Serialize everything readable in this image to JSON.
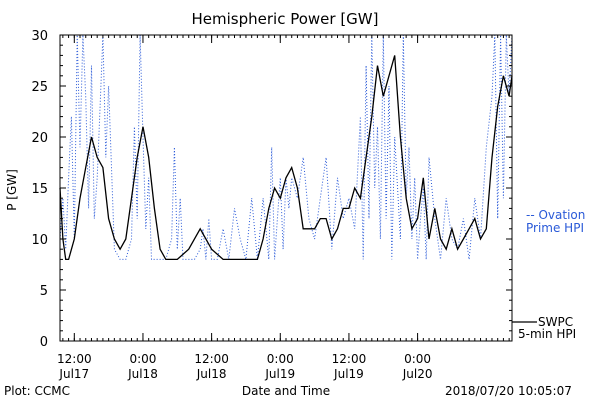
{
  "chart_data": {
    "type": "line",
    "title": "Hemispheric Power [GW]",
    "ylabel": "P [GW]",
    "xlabel": "Date and Time",
    "ylim": [
      0,
      30
    ],
    "xlim": [
      "2018-07-17T09:30",
      "2018-07-20T16:30"
    ],
    "y_ticks": [
      "0",
      "5",
      "10",
      "15",
      "20",
      "25",
      "30"
    ],
    "x_ticks": [
      {
        "time": "2018-07-17T12:00",
        "line1": "12:00",
        "line2": "Jul17"
      },
      {
        "time": "2018-07-18T00:00",
        "line1": "0:00",
        "line2": "Jul18"
      },
      {
        "time": "2018-07-18T12:00",
        "line1": "12:00",
        "line2": "Jul18"
      },
      {
        "time": "2018-07-19T00:00",
        "line1": "0:00",
        "line2": "Jul19"
      },
      {
        "time": "2018-07-19T12:00",
        "line1": "12:00",
        "line2": "Jul19"
      },
      {
        "time": "2018-07-20T00:00",
        "line1": "0:00",
        "line2": "Jul20"
      }
    ],
    "legend": {
      "ovation": {
        "line1": "-- Ovation",
        "line2": "Prime HPI",
        "color": "#2a5ad8"
      },
      "swpc": {
        "line1": "SWPC",
        "line2": "5-min HPI",
        "color": "#000000"
      }
    },
    "series": [
      {
        "name": "SWPC 5-min HPI",
        "style": "solid",
        "color": "#000000",
        "x": [
          "2018-07-17T09:30",
          "2018-07-17T10:00",
          "2018-07-17T10:30",
          "2018-07-17T11:00",
          "2018-07-17T12:00",
          "2018-07-17T13:00",
          "2018-07-17T14:00",
          "2018-07-17T15:00",
          "2018-07-17T16:00",
          "2018-07-17T17:00",
          "2018-07-17T18:00",
          "2018-07-17T19:00",
          "2018-07-17T20:00",
          "2018-07-17T21:00",
          "2018-07-17T22:00",
          "2018-07-17T23:00",
          "2018-07-18T00:00",
          "2018-07-18T01:00",
          "2018-07-18T02:00",
          "2018-07-18T03:00",
          "2018-07-18T04:00",
          "2018-07-18T05:00",
          "2018-07-18T06:00",
          "2018-07-18T08:00",
          "2018-07-18T10:00",
          "2018-07-18T12:00",
          "2018-07-18T14:00",
          "2018-07-18T18:00",
          "2018-07-18T20:00",
          "2018-07-18T21:00",
          "2018-07-18T22:00",
          "2018-07-18T23:00",
          "2018-07-19T00:00",
          "2018-07-19T01:00",
          "2018-07-19T02:00",
          "2018-07-19T03:00",
          "2018-07-19T04:00",
          "2018-07-19T05:00",
          "2018-07-19T06:00",
          "2018-07-19T07:00",
          "2018-07-19T08:00",
          "2018-07-19T09:00",
          "2018-07-19T10:00",
          "2018-07-19T11:00",
          "2018-07-19T12:00",
          "2018-07-19T13:00",
          "2018-07-19T14:00",
          "2018-07-19T15:00",
          "2018-07-19T16:00",
          "2018-07-19T17:00",
          "2018-07-19T18:00",
          "2018-07-19T19:00",
          "2018-07-19T20:00",
          "2018-07-19T21:00",
          "2018-07-19T22:00",
          "2018-07-19T23:00",
          "2018-07-20T00:00",
          "2018-07-20T01:00",
          "2018-07-20T02:00",
          "2018-07-20T03:00",
          "2018-07-20T04:00",
          "2018-07-20T05:00",
          "2018-07-20T06:00",
          "2018-07-20T07:00",
          "2018-07-20T08:00",
          "2018-07-20T09:00",
          "2018-07-20T10:00",
          "2018-07-20T11:00",
          "2018-07-20T12:00",
          "2018-07-20T13:00",
          "2018-07-20T14:00",
          "2018-07-20T15:00",
          "2018-07-20T16:00",
          "2018-07-20T16:30"
        ],
        "y": [
          15,
          10,
          8,
          8,
          10,
          14,
          17,
          20,
          18,
          17,
          12,
          10,
          9,
          10,
          14,
          18,
          21,
          18,
          13,
          9,
          8,
          8,
          8,
          9,
          11,
          9,
          8,
          8,
          8,
          10,
          13,
          15,
          14,
          16,
          17,
          15,
          11,
          11,
          11,
          12,
          12,
          10,
          11,
          13,
          13,
          15,
          14,
          18,
          22,
          27,
          24,
          26,
          28,
          20,
          14,
          11,
          12,
          16,
          10,
          13,
          10,
          9,
          11,
          9,
          10,
          11,
          12,
          10,
          11,
          18,
          23,
          26,
          24,
          26
        ],
        "note": "values estimated from gridlines"
      },
      {
        "name": "Ovation Prime HPI",
        "style": "dotted",
        "color": "#2a5ad8",
        "x": [
          "2018-07-17T09:30",
          "2018-07-17T10:00",
          "2018-07-17T10:30",
          "2018-07-17T11:00",
          "2018-07-17T11:30",
          "2018-07-17T12:00",
          "2018-07-17T12:30",
          "2018-07-17T13:00",
          "2018-07-17T13:30",
          "2018-07-17T14:00",
          "2018-07-17T14:30",
          "2018-07-17T15:00",
          "2018-07-17T15:30",
          "2018-07-17T16:00",
          "2018-07-17T16:30",
          "2018-07-17T17:00",
          "2018-07-17T17:30",
          "2018-07-17T18:00",
          "2018-07-17T19:00",
          "2018-07-17T20:00",
          "2018-07-17T21:00",
          "2018-07-17T22:00",
          "2018-07-17T22:30",
          "2018-07-17T23:00",
          "2018-07-17T23:30",
          "2018-07-18T00:00",
          "2018-07-18T00:30",
          "2018-07-18T01:00",
          "2018-07-18T01:30",
          "2018-07-18T02:00",
          "2018-07-18T03:00",
          "2018-07-18T04:00",
          "2018-07-18T05:00",
          "2018-07-18T05:30",
          "2018-07-18T06:00",
          "2018-07-18T06:30",
          "2018-07-18T07:00",
          "2018-07-18T08:00",
          "2018-07-18T09:00",
          "2018-07-18T10:00",
          "2018-07-18T10:30",
          "2018-07-18T11:00",
          "2018-07-18T11:30",
          "2018-07-18T12:00",
          "2018-07-18T13:00",
          "2018-07-18T14:00",
          "2018-07-18T15:00",
          "2018-07-18T16:00",
          "2018-07-18T17:00",
          "2018-07-18T18:00",
          "2018-07-18T19:00",
          "2018-07-18T20:00",
          "2018-07-18T21:00",
          "2018-07-18T22:00",
          "2018-07-18T22:30",
          "2018-07-18T23:00",
          "2018-07-18T23:30",
          "2018-07-19T00:00",
          "2018-07-19T00:30",
          "2018-07-19T01:00",
          "2018-07-19T01:30",
          "2018-07-19T02:00",
          "2018-07-19T03:00",
          "2018-07-19T04:00",
          "2018-07-19T05:00",
          "2018-07-19T06:00",
          "2018-07-19T07:00",
          "2018-07-19T08:00",
          "2018-07-19T09:00",
          "2018-07-19T10:00",
          "2018-07-19T11:00",
          "2018-07-19T12:00",
          "2018-07-19T13:00",
          "2018-07-19T14:00",
          "2018-07-19T14:30",
          "2018-07-19T15:00",
          "2018-07-19T15:30",
          "2018-07-19T16:00",
          "2018-07-19T16:30",
          "2018-07-19T17:00",
          "2018-07-19T17:30",
          "2018-07-19T18:00",
          "2018-07-19T18:30",
          "2018-07-19T19:00",
          "2018-07-19T19:30",
          "2018-07-19T20:00",
          "2018-07-19T21:00",
          "2018-07-19T21:30",
          "2018-07-19T22:00",
          "2018-07-19T22:30",
          "2018-07-19T23:00",
          "2018-07-19T23:30",
          "2018-07-20T00:00",
          "2018-07-20T00:30",
          "2018-07-20T01:00",
          "2018-07-20T01:30",
          "2018-07-20T02:00",
          "2018-07-20T03:00",
          "2018-07-20T04:00",
          "2018-07-20T05:00",
          "2018-07-20T06:00",
          "2018-07-20T07:00",
          "2018-07-20T08:00",
          "2018-07-20T09:00",
          "2018-07-20T10:00",
          "2018-07-20T11:00",
          "2018-07-20T12:00",
          "2018-07-20T13:00",
          "2018-07-20T13:30",
          "2018-07-20T14:00",
          "2018-07-20T14:30",
          "2018-07-20T15:00",
          "2018-07-20T15:30",
          "2018-07-20T16:00",
          "2018-07-20T16:30"
        ],
        "y": [
          10,
          14,
          9,
          16,
          22,
          10,
          30,
          19,
          30,
          24,
          13,
          27,
          12,
          16,
          23,
          30,
          18,
          25,
          9,
          8,
          8,
          10,
          21,
          12,
          30,
          20,
          11,
          16,
          8,
          8,
          8,
          8,
          10,
          19,
          9,
          14,
          8,
          8,
          8,
          9,
          11,
          8,
          12,
          8,
          8,
          11,
          8,
          13,
          10,
          8,
          14,
          8,
          14,
          8,
          19,
          8,
          12,
          16,
          9,
          16,
          13,
          16,
          14,
          18,
          12,
          10,
          14,
          18,
          9,
          16,
          12,
          14,
          11,
          22,
          8,
          27,
          12,
          30,
          15,
          21,
          10,
          30,
          12,
          25,
          8,
          20,
          10,
          30,
          14,
          19,
          10,
          16,
          8,
          12,
          15,
          8,
          18,
          12,
          8,
          14,
          10,
          9,
          12,
          8,
          14,
          10,
          19,
          24,
          30,
          12,
          30,
          14,
          30,
          24,
          30
        ]
      }
    ],
    "footer": {
      "plot": "Plot: CCMC",
      "date": "2018/07/20 10:05:07"
    }
  }
}
